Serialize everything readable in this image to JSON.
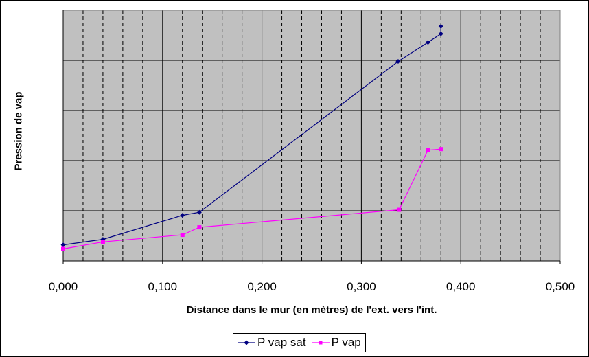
{
  "chart_data": {
    "type": "line",
    "title": "",
    "xlabel": "Distance dans le mur (en mètres) de l'ext. vers l'int.",
    "ylabel": "Pression de vap",
    "xlim": [
      0,
      0.5
    ],
    "ylim": [
      0,
      5
    ],
    "x_ticks": [
      "0,000",
      "0,100",
      "0,200",
      "0,300",
      "0,400",
      "0,500"
    ],
    "x_tick_values": [
      0,
      0.1,
      0.2,
      0.3,
      0.4,
      0.5
    ],
    "grid": true,
    "legend_position": "bottom",
    "series": [
      {
        "name": "P vap sat",
        "color": "#000080",
        "marker": "diamond",
        "points": [
          [
            0.0,
            0.32
          ],
          [
            0.04,
            0.43
          ],
          [
            0.12,
            0.91
          ],
          [
            0.137,
            0.97
          ],
          [
            0.337,
            3.98
          ],
          [
            0.367,
            4.36
          ],
          [
            0.38,
            4.53
          ],
          [
            0.38,
            4.68
          ]
        ]
      },
      {
        "name": "P vap",
        "color": "#FF00FF",
        "marker": "square",
        "points": [
          [
            0.0,
            0.24
          ],
          [
            0.04,
            0.38
          ],
          [
            0.12,
            0.52
          ],
          [
            0.137,
            0.67
          ],
          [
            0.338,
            1.02
          ],
          [
            0.367,
            2.21
          ],
          [
            0.38,
            2.23
          ]
        ]
      }
    ]
  }
}
